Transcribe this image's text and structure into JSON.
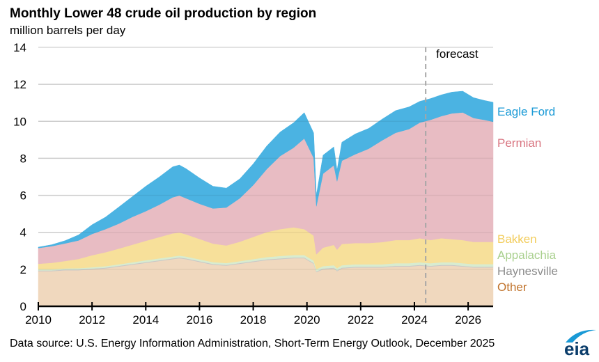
{
  "chart_data": {
    "type": "area",
    "stacked": true,
    "title": "Monthly Lower 48 crude oil production by region",
    "ylabel": "million  barrels per day",
    "xlabel": "",
    "ylim": [
      0,
      14
    ],
    "xlim": [
      2010,
      2026.93
    ],
    "yticks": [
      "0",
      "2",
      "4",
      "6",
      "8",
      "10",
      "12",
      "14"
    ],
    "xticks": [
      "2010",
      "2012",
      "2014",
      "2016",
      "2018",
      "2020",
      "2022",
      "2024",
      "2026"
    ],
    "grid": true,
    "forecast_start": 2024.42,
    "forecast_label": "forecast",
    "legend_placement": "right",
    "x": [
      2010,
      2010.5,
      2011,
      2011.5,
      2012,
      2012.5,
      2013,
      2013.5,
      2014,
      2014.5,
      2015,
      2015.25,
      2015.5,
      2016,
      2016.5,
      2017,
      2017.5,
      2018,
      2018.5,
      2019,
      2019.5,
      2019.9,
      2020.25,
      2020.35,
      2020.6,
      2021.0,
      2021.12,
      2021.3,
      2021.8,
      2022.3,
      2022.8,
      2023.3,
      2023.8,
      2024.2,
      2024.6,
      2025.0,
      2025.4,
      2025.8,
      2026.2,
      2026.6,
      2026.93
    ],
    "series": [
      {
        "name": "Other",
        "color": "#f0d8be",
        "label_color": "#c0722a",
        "values": [
          1.9,
          1.9,
          1.95,
          1.95,
          2.0,
          2.05,
          2.15,
          2.25,
          2.35,
          2.45,
          2.55,
          2.6,
          2.55,
          2.4,
          2.25,
          2.2,
          2.3,
          2.4,
          2.5,
          2.55,
          2.6,
          2.6,
          2.3,
          1.85,
          2.0,
          2.05,
          1.9,
          2.05,
          2.1,
          2.1,
          2.1,
          2.15,
          2.15,
          2.2,
          2.15,
          2.2,
          2.2,
          2.15,
          2.1,
          2.1,
          2.1
        ]
      },
      {
        "name": "Haynesville",
        "color": "#c8c8c8",
        "label_color": "#8c8c8c",
        "values": [
          0.04,
          0.04,
          0.04,
          0.04,
          0.04,
          0.04,
          0.04,
          0.04,
          0.04,
          0.04,
          0.04,
          0.04,
          0.04,
          0.04,
          0.04,
          0.04,
          0.04,
          0.04,
          0.04,
          0.04,
          0.04,
          0.04,
          0.04,
          0.04,
          0.04,
          0.04,
          0.04,
          0.04,
          0.04,
          0.04,
          0.04,
          0.04,
          0.04,
          0.04,
          0.04,
          0.04,
          0.04,
          0.04,
          0.04,
          0.04,
          0.04
        ]
      },
      {
        "name": "Appalachia",
        "color": "#d8ecd0",
        "label_color": "#a9d08e",
        "values": [
          0.06,
          0.06,
          0.06,
          0.07,
          0.07,
          0.08,
          0.08,
          0.09,
          0.1,
          0.1,
          0.1,
          0.1,
          0.1,
          0.1,
          0.1,
          0.1,
          0.1,
          0.11,
          0.12,
          0.13,
          0.13,
          0.13,
          0.13,
          0.12,
          0.13,
          0.13,
          0.12,
          0.13,
          0.13,
          0.13,
          0.13,
          0.14,
          0.14,
          0.14,
          0.14,
          0.14,
          0.14,
          0.14,
          0.14,
          0.14,
          0.14
        ]
      },
      {
        "name": "Bakken",
        "color": "#f7e09a",
        "label_color": "#f2cc5a",
        "values": [
          0.3,
          0.35,
          0.4,
          0.5,
          0.65,
          0.75,
          0.85,
          0.95,
          1.05,
          1.15,
          1.25,
          1.25,
          1.2,
          1.1,
          1.0,
          0.95,
          1.05,
          1.2,
          1.35,
          1.45,
          1.5,
          1.4,
          1.35,
          0.8,
          1.0,
          1.1,
          1.0,
          1.15,
          1.15,
          1.15,
          1.2,
          1.25,
          1.25,
          1.3,
          1.25,
          1.3,
          1.25,
          1.25,
          1.2,
          1.2,
          1.2
        ]
      },
      {
        "name": "Permian",
        "color": "#e8bcc3",
        "label_color": "#d8737f",
        "values": [
          0.85,
          0.9,
          0.95,
          1.0,
          1.15,
          1.25,
          1.35,
          1.5,
          1.6,
          1.75,
          1.95,
          2.0,
          1.95,
          1.9,
          1.9,
          2.05,
          2.35,
          2.8,
          3.4,
          3.95,
          4.3,
          4.9,
          4.2,
          2.6,
          4.0,
          4.3,
          3.7,
          4.5,
          4.8,
          5.1,
          5.5,
          5.8,
          6.0,
          6.25,
          6.5,
          6.6,
          6.8,
          6.9,
          6.7,
          6.6,
          6.5
        ]
      },
      {
        "name": "Eagle Ford",
        "color": "#4bb3e2",
        "label_color": "#1a9ad6",
        "values": [
          0.05,
          0.08,
          0.15,
          0.3,
          0.5,
          0.65,
          0.9,
          1.1,
          1.35,
          1.5,
          1.65,
          1.65,
          1.6,
          1.4,
          1.2,
          1.05,
          1.05,
          1.15,
          1.25,
          1.3,
          1.35,
          1.4,
          1.35,
          0.6,
          1.0,
          1.0,
          0.6,
          1.0,
          1.1,
          1.1,
          1.15,
          1.2,
          1.2,
          1.15,
          1.15,
          1.15,
          1.15,
          1.15,
          1.1,
          1.05,
          1.05
        ]
      }
    ]
  },
  "source_text": "Data source: U.S. Energy Information Administration,  Short-Term Energy Outlook, December 2025",
  "logo_text": "eia"
}
